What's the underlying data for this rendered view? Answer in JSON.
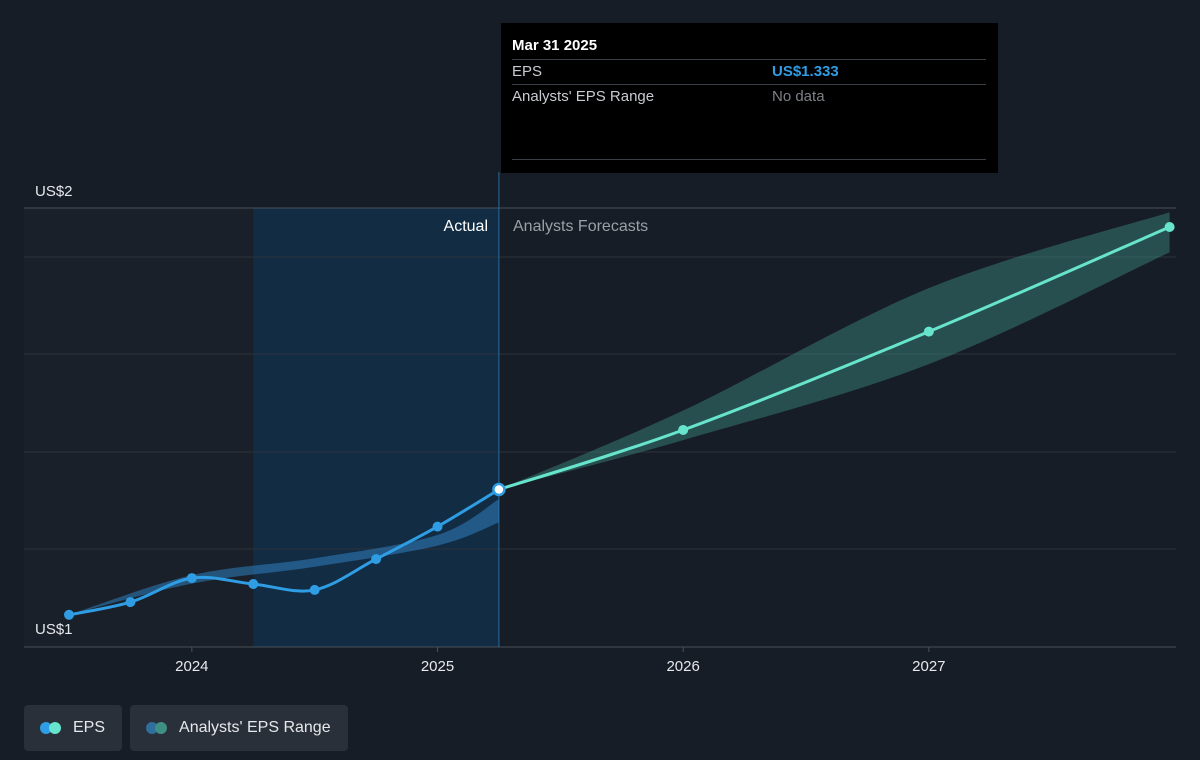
{
  "chart_data": {
    "type": "line",
    "y_axis": {
      "min": 1,
      "max": 2,
      "top_label": "US$2",
      "bottom_label": "US$1"
    },
    "x_ticks": [
      {
        "label": "2024",
        "x": 2024.0
      },
      {
        "label": "2025",
        "x": 2025.0
      },
      {
        "label": "2026",
        "x": 2026.0
      },
      {
        "label": "2027",
        "x": 2027.0
      }
    ],
    "x_range": [
      2023.3,
      2027.98
    ],
    "grid": true,
    "region_labels": {
      "actual": "Actual",
      "forecast": "Analysts Forecasts"
    },
    "highlight_range": [
      2024.25,
      2025.25
    ],
    "divider_x": 2025.25,
    "series": [
      {
        "name": "EPS",
        "kind": "actual",
        "color": "#2f9de4",
        "points": [
          {
            "x": 2023.5,
            "y": 1.036
          },
          {
            "x": 2023.75,
            "y": 1.066
          },
          {
            "x": 2024.0,
            "y": 1.123
          },
          {
            "x": 2024.25,
            "y": 1.109
          },
          {
            "x": 2024.5,
            "y": 1.095
          },
          {
            "x": 2024.75,
            "y": 1.168
          },
          {
            "x": 2025.0,
            "y": 1.245
          },
          {
            "x": 2025.25,
            "y": 1.333
          }
        ]
      },
      {
        "name": "EPS",
        "kind": "forecast",
        "color": "#67e4cc",
        "points": [
          {
            "x": 2025.25,
            "y": 1.333
          },
          {
            "x": 2026.0,
            "y": 1.474
          },
          {
            "x": 2027.0,
            "y": 1.707
          },
          {
            "x": 2027.98,
            "y": 1.955
          }
        ]
      }
    ],
    "ranges": [
      {
        "name": "Analysts' EPS Range",
        "kind": "actual",
        "color": "#2f7fbf",
        "upper": [
          {
            "x": 2023.5,
            "y": 1.036
          },
          {
            "x": 2024.0,
            "y": 1.13
          },
          {
            "x": 2024.5,
            "y": 1.17
          },
          {
            "x": 2025.0,
            "y": 1.225
          },
          {
            "x": 2025.25,
            "y": 1.31
          }
        ],
        "lower": [
          {
            "x": 2023.5,
            "y": 1.036
          },
          {
            "x": 2024.0,
            "y": 1.11
          },
          {
            "x": 2024.5,
            "y": 1.15
          },
          {
            "x": 2025.0,
            "y": 1.2
          },
          {
            "x": 2025.25,
            "y": 1.255
          }
        ]
      },
      {
        "name": "Analysts' EPS Range",
        "kind": "forecast",
        "color": "#3f8f84",
        "upper": [
          {
            "x": 2025.25,
            "y": 1.333
          },
          {
            "x": 2026.0,
            "y": 1.52
          },
          {
            "x": 2027.0,
            "y": 1.81
          },
          {
            "x": 2027.98,
            "y": 1.99
          }
        ],
        "lower": [
          {
            "x": 2025.25,
            "y": 1.333
          },
          {
            "x": 2026.0,
            "y": 1.45
          },
          {
            "x": 2027.0,
            "y": 1.63
          },
          {
            "x": 2027.98,
            "y": 1.895
          }
        ]
      }
    ]
  },
  "tooltip": {
    "date": "Mar 31 2025",
    "rows": [
      {
        "label": "EPS",
        "value": "US$1.333"
      },
      {
        "label": "Analysts' EPS Range",
        "value": "No data"
      }
    ]
  },
  "legend": {
    "items": [
      {
        "label": "EPS",
        "colors": [
          "#2f9de4",
          "#67e4cc"
        ]
      },
      {
        "label": "Analysts' EPS Range",
        "colors": [
          "#2f6f9d",
          "#3f8f84"
        ]
      }
    ]
  }
}
